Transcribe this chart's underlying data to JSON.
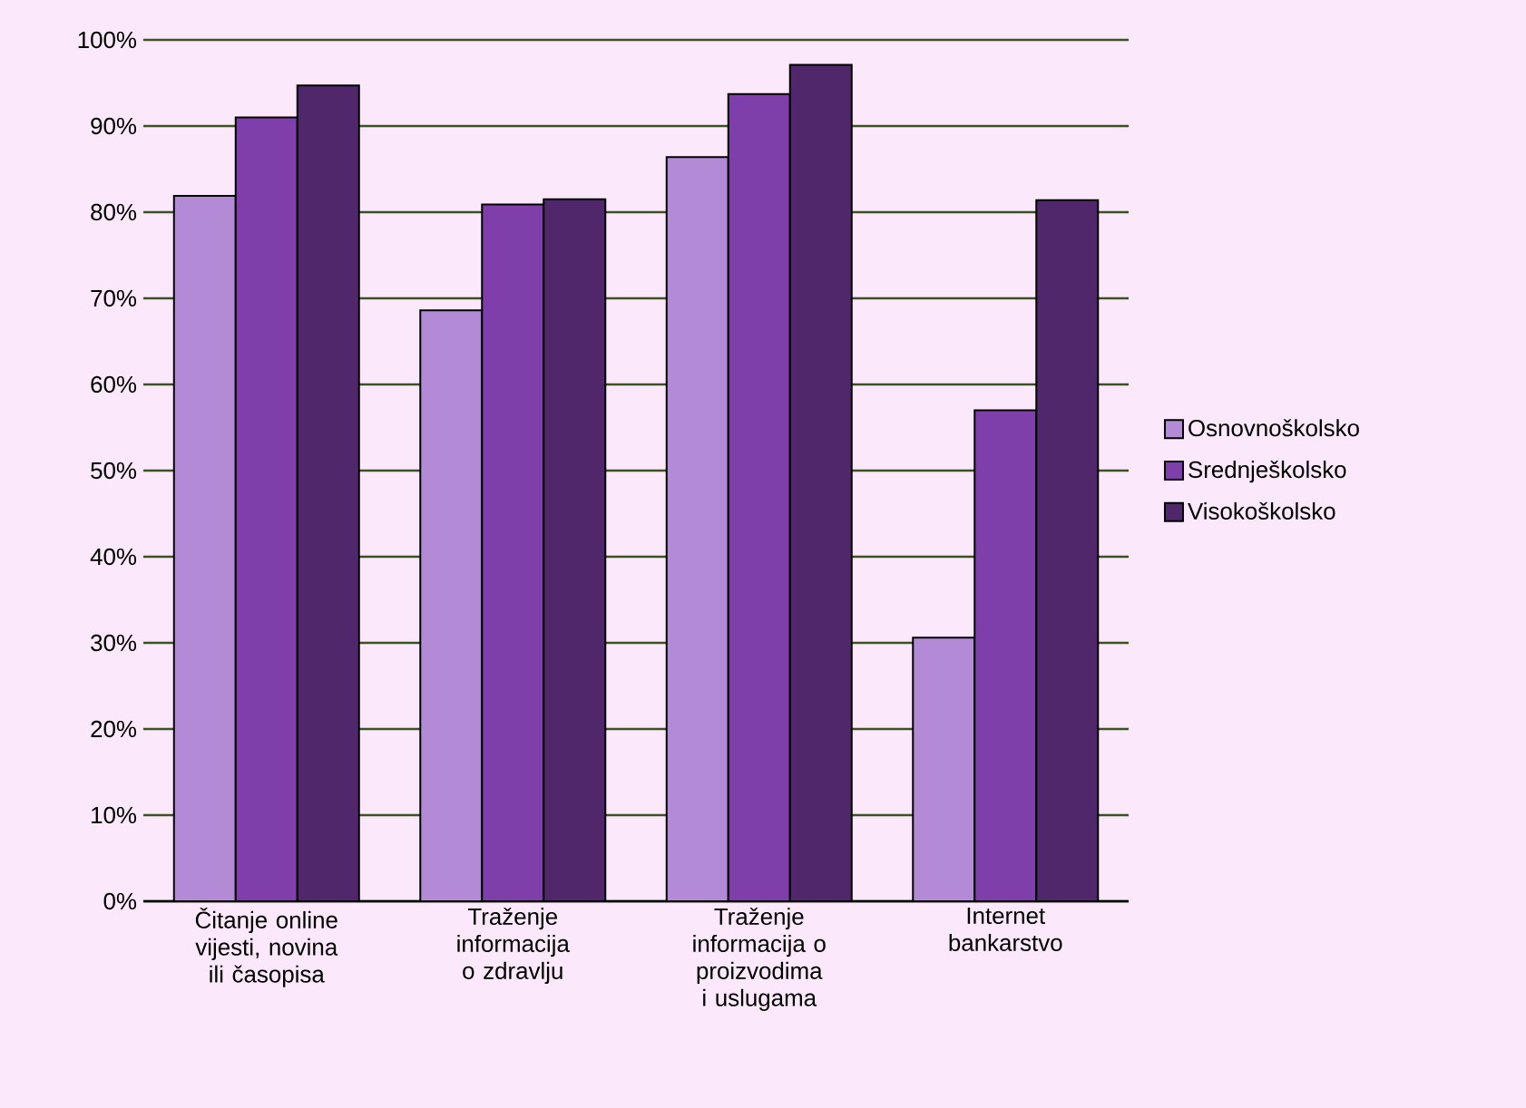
{
  "chart_data": {
    "type": "bar",
    "categories": [
      "Čitanje online vijesti, novina ili časopisa",
      "Traženje informacija o zdravlju",
      "Traženje informacija o proizvodima i uslugama",
      "Internet bankarstvo"
    ],
    "series": [
      {
        "name": "Osnovnoškolsko",
        "color": "#b38ad6",
        "values": [
          81.9,
          68.6,
          86.4,
          30.6
        ]
      },
      {
        "name": "Srednješkolsko",
        "color": "#7f3fab",
        "values": [
          91.0,
          80.9,
          93.7,
          57.0
        ]
      },
      {
        "name": "Visokoškolsko",
        "color": "#4f276a",
        "values": [
          94.7,
          81.5,
          97.1,
          81.4
        ]
      }
    ],
    "ylim": [
      0,
      100
    ],
    "yticks": [
      {
        "value": 0,
        "label": "0%"
      },
      {
        "value": 10,
        "label": "10%"
      },
      {
        "value": 20,
        "label": "20%"
      },
      {
        "value": 30,
        "label": "30%"
      },
      {
        "value": 40,
        "label": "40%"
      },
      {
        "value": 50,
        "label": "50%"
      },
      {
        "value": 60,
        "label": "60%"
      },
      {
        "value": 70,
        "label": "70%"
      },
      {
        "value": 80,
        "label": "80%"
      },
      {
        "value": 90,
        "label": "90%"
      },
      {
        "value": 100,
        "label": "100%"
      }
    ],
    "grid": "y",
    "legend": "right"
  }
}
